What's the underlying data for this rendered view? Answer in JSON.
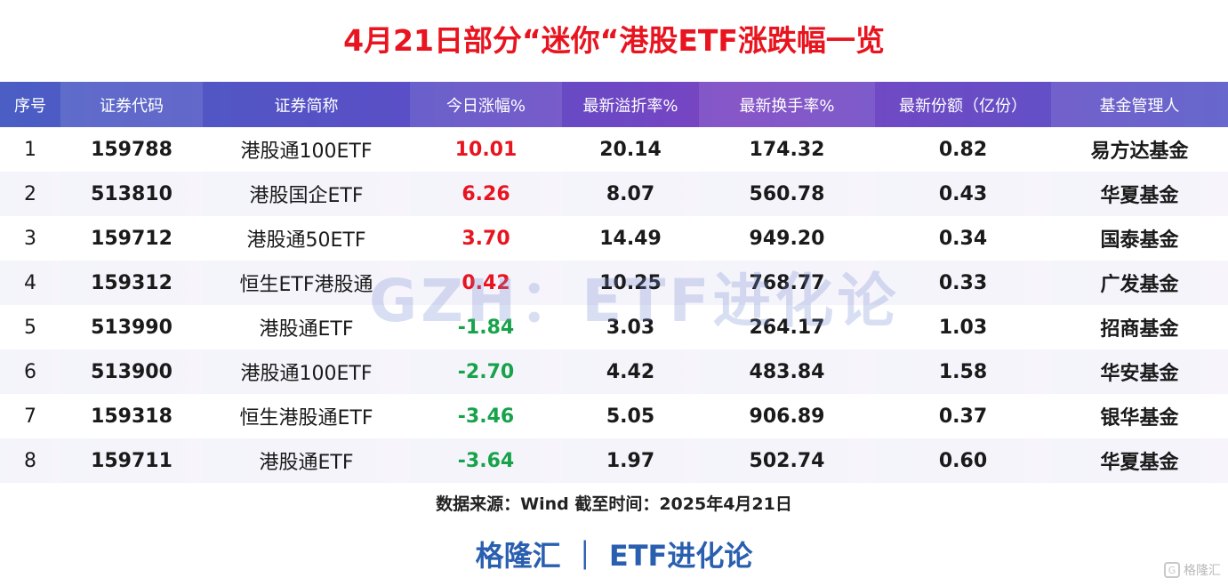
{
  "title": "4月21日部分“迷你“港股ETF涨跌幅一览",
  "watermark": "GZH：ETF进化论",
  "headers": [
    "序号",
    "证券代码",
    "证券简称",
    "今日涨幅%",
    "最新溢折率%",
    "最新换手率%",
    "最新份额（亿份）",
    "基金管理人"
  ],
  "rows": [
    {
      "idx": "1",
      "code": "159788",
      "name": "港股通100ETF",
      "change": "10.01",
      "dir": "up",
      "premium": "20.14",
      "turnover": "174.32",
      "shares": "0.82",
      "manager": "易方达基金"
    },
    {
      "idx": "2",
      "code": "513810",
      "name": "港股国企ETF",
      "change": "6.26",
      "dir": "up",
      "premium": "8.07",
      "turnover": "560.78",
      "shares": "0.43",
      "manager": "华夏基金"
    },
    {
      "idx": "3",
      "code": "159712",
      "name": "港股通50ETF",
      "change": "3.70",
      "dir": "up",
      "premium": "14.49",
      "turnover": "949.20",
      "shares": "0.34",
      "manager": "国泰基金"
    },
    {
      "idx": "4",
      "code": "159312",
      "name": "恒生ETF港股通",
      "change": "0.42",
      "dir": "up",
      "premium": "10.25",
      "turnover": "768.77",
      "shares": "0.33",
      "manager": "广发基金"
    },
    {
      "idx": "5",
      "code": "513990",
      "name": "港股通ETF",
      "change": "-1.84",
      "dir": "down",
      "premium": "3.03",
      "turnover": "264.17",
      "shares": "1.03",
      "manager": "招商基金"
    },
    {
      "idx": "6",
      "code": "513900",
      "name": "港股通100ETF",
      "change": "-2.70",
      "dir": "down",
      "premium": "4.42",
      "turnover": "483.84",
      "shares": "1.58",
      "manager": "华安基金"
    },
    {
      "idx": "7",
      "code": "159318",
      "name": "恒生港股通ETF",
      "change": "-3.46",
      "dir": "down",
      "premium": "5.05",
      "turnover": "906.89",
      "shares": "0.37",
      "manager": "银华基金"
    },
    {
      "idx": "8",
      "code": "159711",
      "name": "港股通ETF",
      "change": "-3.64",
      "dir": "down",
      "premium": "1.97",
      "turnover": "502.74",
      "shares": "0.60",
      "manager": "华夏基金"
    }
  ],
  "source": "数据来源：Wind 截至时间：2025年4月21日",
  "brand": "格隆汇 ｜ ETF进化论",
  "corner_brand": "格隆汇",
  "colors": {
    "up": "#e8141f",
    "down": "#17a34a",
    "title": "#e8141f",
    "brand": "#2a5fb0"
  }
}
